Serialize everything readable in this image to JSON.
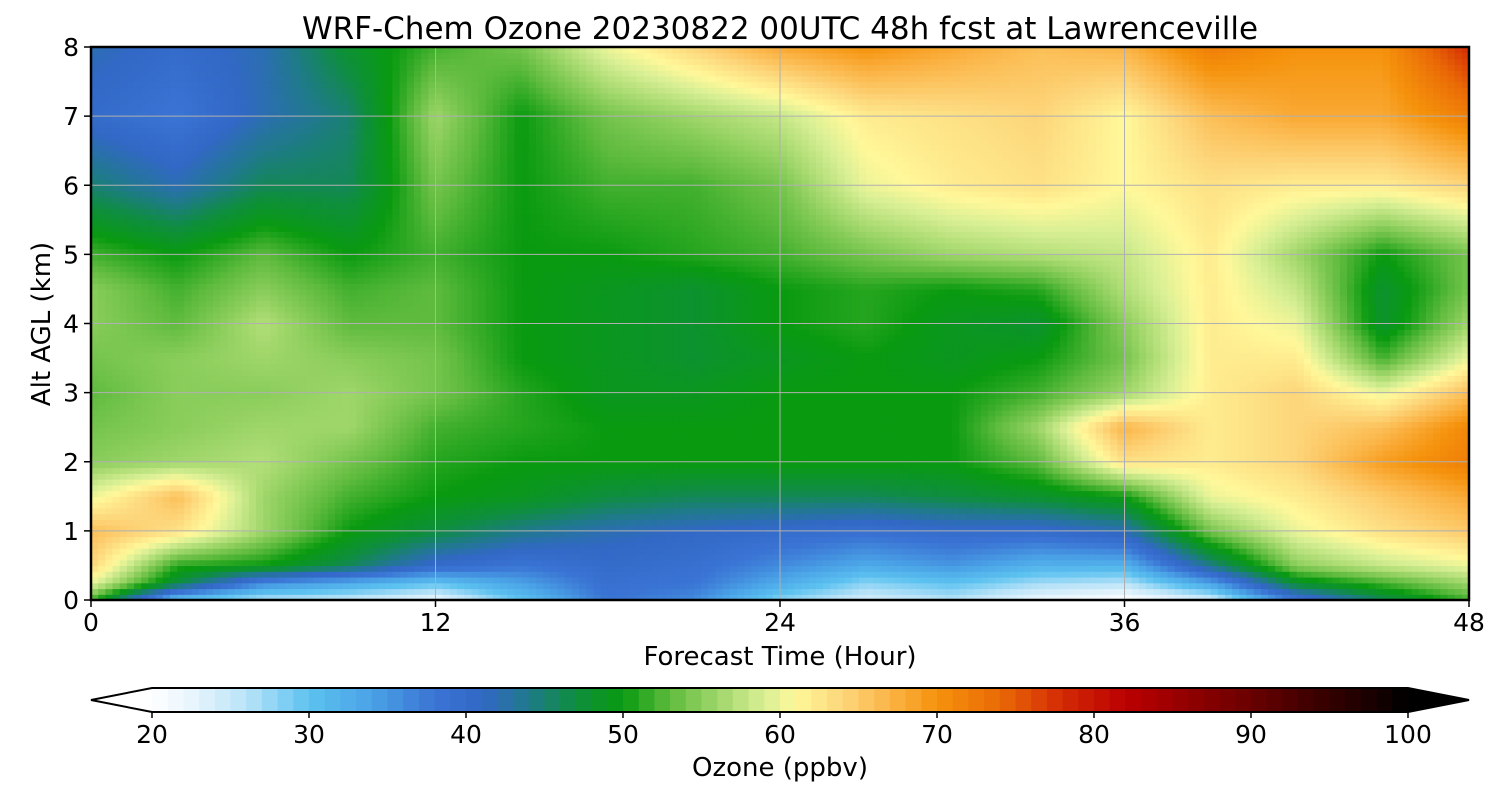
{
  "chart_data": {
    "type": "heatmap",
    "title": "WRF-Chem Ozone  20230822 00UTC 48h fcst at Lawrenceville",
    "xlabel": "Forecast Time (Hour)",
    "ylabel": "Alt AGL (km)",
    "xlim": [
      0,
      48
    ],
    "ylim": [
      0,
      8
    ],
    "xticks": [
      0,
      12,
      24,
      36,
      48
    ],
    "yticks": [
      0,
      1,
      2,
      3,
      4,
      5,
      6,
      7,
      8
    ],
    "grid": true,
    "x": [
      0,
      3,
      6,
      9,
      12,
      15,
      18,
      21,
      24,
      27,
      30,
      33,
      36,
      39,
      42,
      45,
      48
    ],
    "y": [
      0,
      0.25,
      0.5,
      1,
      1.5,
      2,
      2.5,
      3,
      3.5,
      4,
      4.5,
      5,
      6,
      7,
      8
    ],
    "values": [
      [
        52,
        30,
        26,
        25,
        22,
        30,
        38,
        36,
        28,
        24,
        26,
        22,
        20,
        24,
        38,
        46,
        52
      ],
      [
        60,
        47,
        36,
        33,
        30,
        34,
        39,
        38,
        33,
        28,
        30,
        27,
        26,
        34,
        48,
        52,
        56
      ],
      [
        64,
        51,
        50,
        46,
        40,
        38,
        40,
        39,
        36,
        33,
        35,
        32,
        32,
        44,
        55,
        58,
        60
      ],
      [
        66,
        63,
        56,
        50,
        47,
        44,
        42,
        41,
        40,
        39,
        40,
        40,
        42,
        54,
        60,
        63,
        65
      ],
      [
        60,
        66,
        56,
        52,
        50,
        49,
        47,
        46,
        46,
        46,
        47,
        48,
        50,
        60,
        62,
        65,
        68
      ],
      [
        55,
        56,
        57,
        54,
        51,
        50,
        50,
        50,
        50,
        50,
        50,
        53,
        63,
        62,
        64,
        69,
        72
      ],
      [
        54,
        55,
        56,
        56,
        52,
        51,
        50,
        50,
        50,
        50,
        50,
        56,
        67,
        62,
        64,
        66,
        71
      ],
      [
        53,
        55,
        55,
        56,
        54,
        51,
        49,
        49,
        50,
        50,
        50,
        52,
        56,
        62,
        64,
        60,
        66
      ],
      [
        54,
        55,
        56,
        55,
        54,
        50,
        49,
        48,
        49,
        50,
        49,
        50,
        54,
        62,
        62,
        52,
        60
      ],
      [
        55,
        53,
        57,
        53,
        53,
        50,
        49,
        48,
        50,
        51,
        49,
        48,
        55,
        62,
        60,
        48,
        56
      ],
      [
        55,
        52,
        55,
        52,
        53,
        50,
        49,
        48,
        50,
        51,
        50,
        51,
        57,
        62,
        58,
        48,
        54
      ],
      [
        52,
        50,
        53,
        50,
        52,
        50,
        50,
        51,
        52,
        54,
        56,
        57,
        58,
        62,
        56,
        50,
        54
      ],
      [
        45,
        42,
        46,
        46,
        54,
        50,
        52,
        52,
        54,
        60,
        62,
        63,
        61,
        63,
        62,
        62,
        64
      ],
      [
        40,
        38,
        42,
        45,
        56,
        50,
        54,
        56,
        58,
        62,
        63,
        64,
        61,
        66,
        68,
        68,
        72
      ],
      [
        42,
        40,
        42,
        48,
        52,
        54,
        60,
        64,
        68,
        70,
        68,
        66,
        67,
        72,
        70,
        70,
        78
      ]
    ],
    "colorbar": {
      "label": "Ozone  (ppbv)",
      "min": 20,
      "max": 100,
      "ticks": [
        20,
        30,
        40,
        50,
        60,
        70,
        80,
        90,
        100
      ],
      "extend": "both",
      "stops": [
        {
          "v": 20,
          "c": "#ffffff"
        },
        {
          "v": 23,
          "c": "#e3f3fc"
        },
        {
          "v": 26,
          "c": "#b9e3f8"
        },
        {
          "v": 30,
          "c": "#5cc2f0"
        },
        {
          "v": 34,
          "c": "#4aa2e6"
        },
        {
          "v": 38,
          "c": "#3a74d4"
        },
        {
          "v": 41,
          "c": "#3268c6"
        },
        {
          "v": 44,
          "c": "#1f7a8a"
        },
        {
          "v": 47,
          "c": "#0e8e3e"
        },
        {
          "v": 50,
          "c": "#099a10"
        },
        {
          "v": 53,
          "c": "#5fbb3e"
        },
        {
          "v": 56,
          "c": "#9fd66a"
        },
        {
          "v": 59,
          "c": "#d8ef94"
        },
        {
          "v": 61,
          "c": "#fff89a"
        },
        {
          "v": 64,
          "c": "#fdd57a"
        },
        {
          "v": 67,
          "c": "#fbb446"
        },
        {
          "v": 70,
          "c": "#f5920c"
        },
        {
          "v": 74,
          "c": "#ea6a06"
        },
        {
          "v": 78,
          "c": "#d32a05"
        },
        {
          "v": 82,
          "c": "#bb0000"
        },
        {
          "v": 88,
          "c": "#7e0000"
        },
        {
          "v": 94,
          "c": "#3e0000"
        },
        {
          "v": 100,
          "c": "#000000"
        }
      ]
    }
  }
}
